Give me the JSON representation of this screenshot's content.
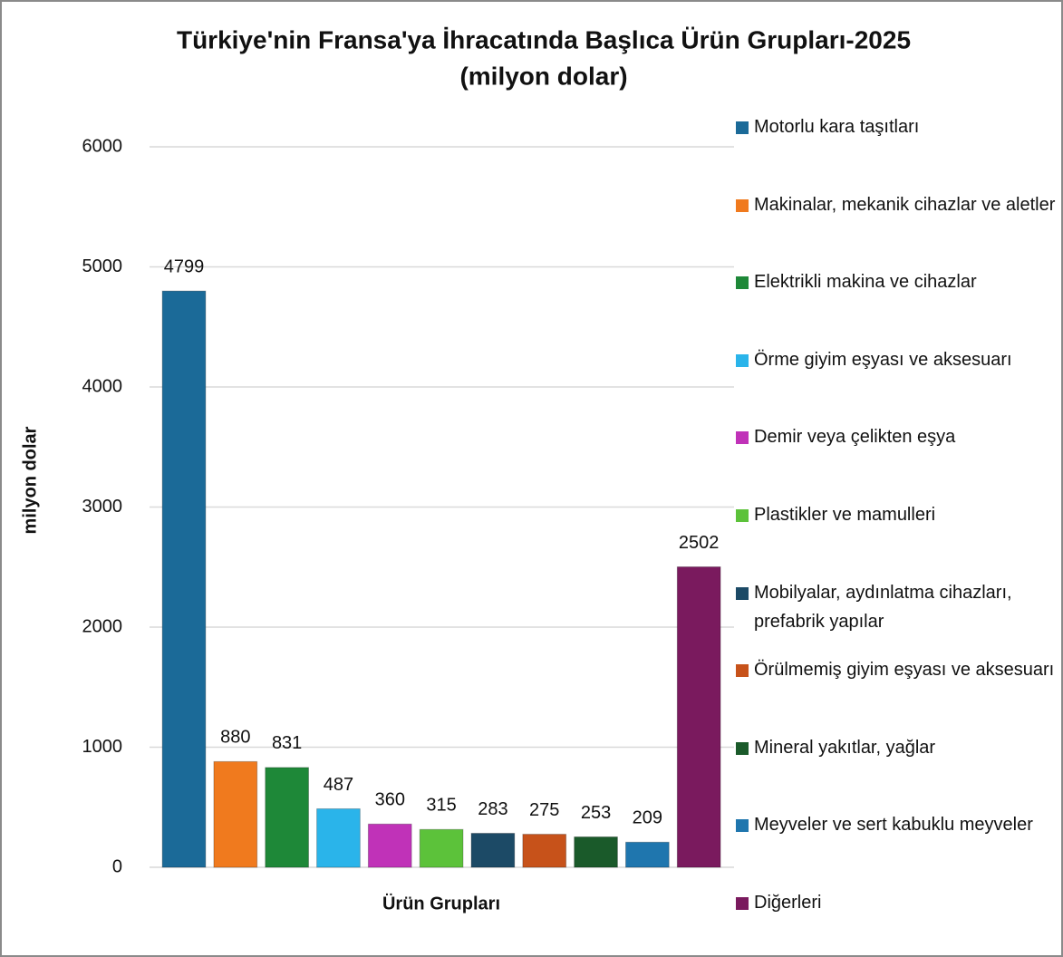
{
  "chart_data": {
    "type": "bar",
    "title": "Türkiye'nin Fransa'ya İhracatında Başlıca Ürün Grupları-2025",
    "subtitle": "(milyon dolar)",
    "y_label": "milyon dolar",
    "x_label": "Ürün Grupları",
    "ylim": [
      0,
      6000
    ],
    "yticks": [
      0,
      1000,
      2000,
      3000,
      4000,
      5000,
      6000
    ],
    "grid": true,
    "legend": "right",
    "series": [
      {
        "name": "Motorlu kara taşıtları",
        "color": "#1b6a98",
        "values": [
          4799
        ]
      },
      {
        "name": "Makinalar, mekanik cihazlar ve aletler",
        "color": "#f07a1e",
        "values": [
          880
        ]
      },
      {
        "name": "Elektrikli makina ve cihazlar",
        "color": "#1e8838",
        "values": [
          831
        ]
      },
      {
        "name": "Örme giyim eşyası ve aksesuarı",
        "color": "#2ab4ea",
        "values": [
          487
        ]
      },
      {
        "name": "Demir veya çelikten eşya",
        "color": "#c032b8",
        "values": [
          360
        ]
      },
      {
        "name": "Plastikler ve mamulleri",
        "color": "#5cc23a",
        "values": [
          315
        ]
      },
      {
        "name": "Mobilyalar, aydınlatma cihazları, prefabrik yapılar",
        "color": "#1c4a66",
        "values": [
          283
        ]
      },
      {
        "name": "Örülmemiş giyim eşyası ve aksesuarı",
        "color": "#c7521a",
        "values": [
          275
        ]
      },
      {
        "name": "Mineral yakıtlar, yağlar",
        "color": "#1a5a2a",
        "values": [
          253
        ]
      },
      {
        "name": "Meyveler ve sert kabuklu meyveler",
        "color": "#1f76ae",
        "values": [
          209
        ]
      },
      {
        "name": "Diğerleri",
        "color": "#7a1a5e",
        "values": [
          2502
        ]
      }
    ]
  }
}
